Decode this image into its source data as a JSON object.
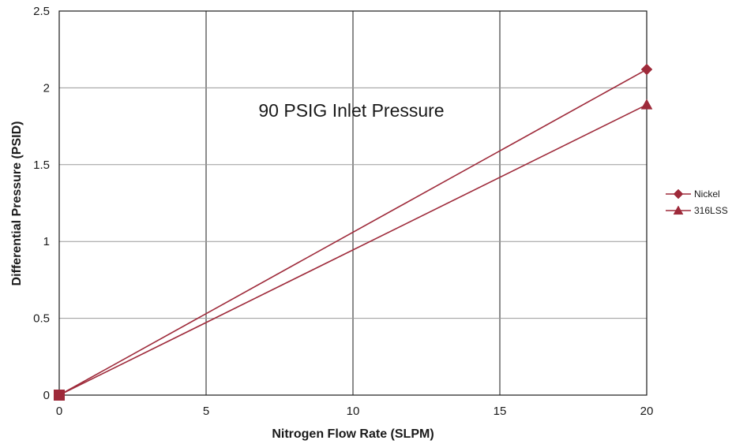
{
  "chart_data": {
    "type": "line",
    "title": "",
    "xlabel": "Nitrogen Flow Rate (SLPM)",
    "ylabel": "Differential Pressure (PSID)",
    "annotation": "90 PSIG Inlet Pressure",
    "xlim": [
      0,
      20
    ],
    "ylim": [
      0,
      2.5
    ],
    "x_ticks": [
      "0",
      "5",
      "10",
      "15",
      "20"
    ],
    "y_ticks": [
      "0",
      "0.5",
      "1",
      "1.5",
      "2",
      "2.5"
    ],
    "grid": true,
    "legend_position": "right",
    "series": [
      {
        "name": "Nickel",
        "marker": "diamond",
        "color": "#9e2a3a",
        "x": [
          0,
          20
        ],
        "y": [
          0,
          2.12
        ]
      },
      {
        "name": "316LSS",
        "marker": "triangle",
        "color": "#9e2a3a",
        "x": [
          0,
          20
        ],
        "y": [
          0,
          1.89
        ]
      }
    ]
  }
}
